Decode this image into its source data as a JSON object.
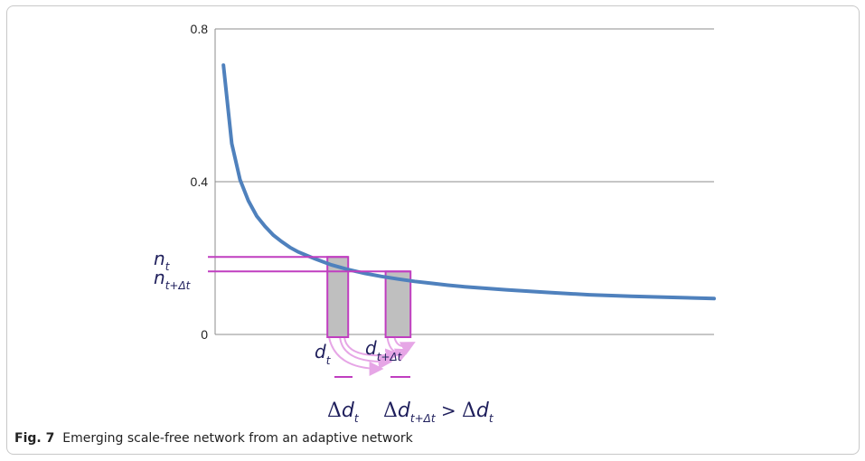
{
  "caption": {
    "label": "Fig. 7",
    "text": "Emerging scale-free network from an adaptive network"
  },
  "chart_data": {
    "type": "line",
    "title": "",
    "xlabel": "",
    "ylabel": "",
    "ylim": [
      0,
      0.8
    ],
    "yticks": [
      "0.8",
      "0.4",
      "0"
    ],
    "grid": "horizontal",
    "series": [
      {
        "color": "#4f81bd",
        "x": [
          1,
          2,
          3,
          4,
          5,
          6,
          7,
          8,
          9,
          10,
          12,
          14,
          16,
          18,
          20,
          22,
          24,
          26,
          28,
          30,
          35,
          40,
          45,
          50,
          55,
          60
        ],
        "values": [
          0.705,
          0.5,
          0.405,
          0.35,
          0.31,
          0.283,
          0.26,
          0.243,
          0.228,
          0.216,
          0.198,
          0.182,
          0.17,
          0.16,
          0.152,
          0.145,
          0.139,
          0.134,
          0.129,
          0.125,
          0.117,
          0.11,
          0.104,
          0.1,
          0.097,
          0.094
        ]
      }
    ],
    "annotation_color": "#c03ec0",
    "bar_fill": "#bfbfbf",
    "bars": [
      {
        "x_start": 13.5,
        "x_end": 16.0,
        "value": 0.203
      },
      {
        "x_start": 20.5,
        "x_end": 23.5,
        "value": 0.165
      }
    ],
    "labels": {
      "n_t": {
        "main": "n",
        "sub": "t"
      },
      "n_t_dt": {
        "main": "n",
        "sub": "t+Δt"
      },
      "d_t": {
        "main": "d",
        "sub": "t"
      },
      "d_t_dt": {
        "main": "d",
        "sub": "t+Δt"
      },
      "delta_d_t": {
        "delta": "Δ",
        "main": "d",
        "sub": "t"
      },
      "inequality": {
        "delta": "Δ",
        "main": "d",
        "sub": "t+Δt",
        "op": " > ",
        "rhs_delta": "Δ",
        "rhs_main": "d",
        "rhs_sub": "t"
      }
    }
  }
}
